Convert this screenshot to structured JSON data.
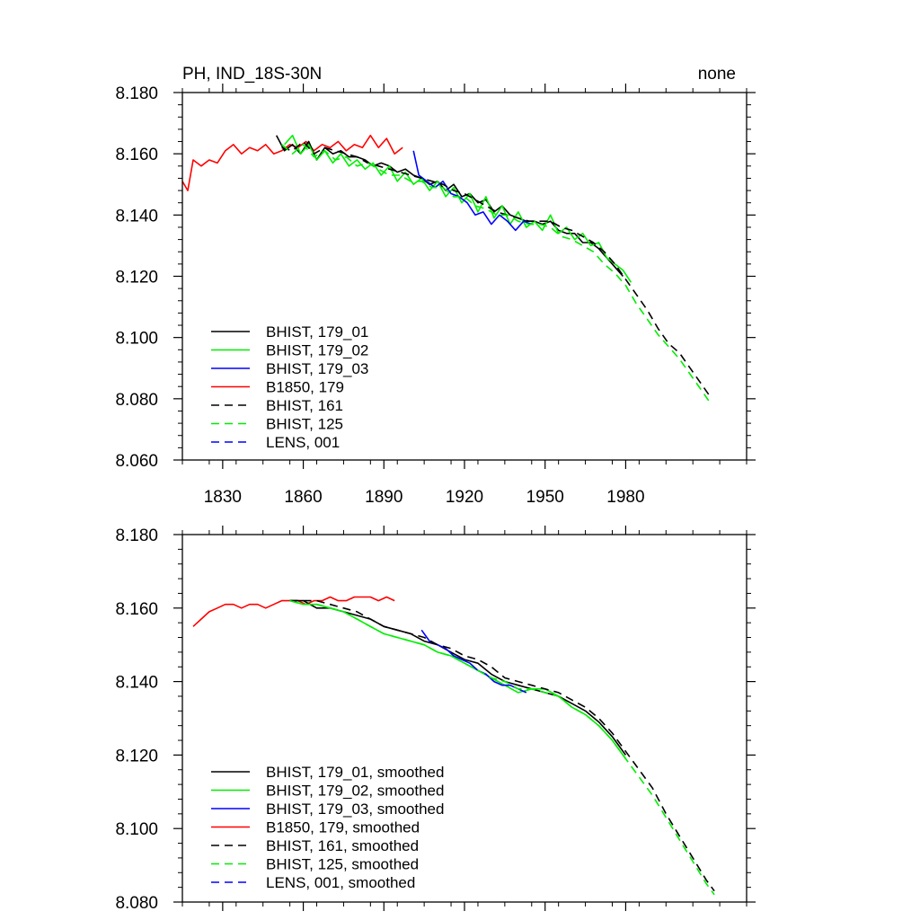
{
  "chart_data": [
    {
      "type": "line",
      "title_left": "PH, IND_18S-30N",
      "title_right": "none",
      "xlim": [
        1815,
        2025
      ],
      "ylim": [
        8.06,
        8.18
      ],
      "xticks": [
        1830,
        1860,
        1890,
        1920,
        1950,
        1980
      ],
      "xtick_labels": [
        "1830",
        "1860",
        "1890",
        "1920",
        "1950",
        "1980"
      ],
      "yticks": [
        8.06,
        8.08,
        8.1,
        8.12,
        8.14,
        8.16,
        8.18
      ],
      "ytick_labels": [
        "8.060",
        "8.080",
        "8.100",
        "8.120",
        "8.140",
        "8.160",
        "8.180"
      ],
      "legend_position": "bottom-left",
      "legend": [
        {
          "label": "BHIST, 179_01",
          "color": "#000000",
          "dash": "solid"
        },
        {
          "label": "BHIST, 179_02",
          "color": "#00ee00",
          "dash": "solid"
        },
        {
          "label": "BHIST, 179_03",
          "color": "#0000ff",
          "dash": "solid"
        },
        {
          "label": "B1850, 179",
          "color": "#ff0000",
          "dash": "solid"
        },
        {
          "label": "BHIST, 161",
          "color": "#000000",
          "dash": "dashed"
        },
        {
          "label": "BHIST, 125",
          "color": "#00ee00",
          "dash": "dashed"
        },
        {
          "label": "LENS, 001",
          "color": "#0000ff",
          "dash": "dashed"
        }
      ],
      "series": [
        {
          "name": "B1850, 179",
          "color": "#ff0000",
          "dash": "solid",
          "x": [
            1815,
            1817,
            1819,
            1822,
            1825,
            1828,
            1831,
            1834,
            1837,
            1840,
            1843,
            1846,
            1849,
            1852,
            1855,
            1858,
            1861,
            1864,
            1867,
            1870,
            1873,
            1876,
            1879,
            1882,
            1885,
            1888,
            1891,
            1894,
            1897
          ],
          "y": [
            8.151,
            8.148,
            8.158,
            8.156,
            8.158,
            8.157,
            8.161,
            8.163,
            8.16,
            8.162,
            8.161,
            8.163,
            8.16,
            8.161,
            8.163,
            8.162,
            8.164,
            8.161,
            8.163,
            8.162,
            8.164,
            8.161,
            8.163,
            8.162,
            8.166,
            8.162,
            8.165,
            8.16,
            8.162
          ]
        },
        {
          "name": "BHIST, 179_01",
          "color": "#000000",
          "dash": "solid",
          "x": [
            1850,
            1853,
            1856,
            1859,
            1862,
            1865,
            1868,
            1871,
            1874,
            1877,
            1880,
            1883,
            1886,
            1889,
            1892,
            1895,
            1898,
            1901,
            1904,
            1907,
            1910,
            1913,
            1916,
            1919,
            1922,
            1925,
            1928,
            1931,
            1934,
            1937,
            1940,
            1943,
            1946,
            1949,
            1952,
            1955,
            1958,
            1961,
            1964,
            1967,
            1970,
            1973,
            1976,
            1979
          ],
          "y": [
            8.166,
            8.161,
            8.163,
            8.16,
            8.164,
            8.158,
            8.162,
            8.16,
            8.161,
            8.159,
            8.159,
            8.158,
            8.156,
            8.157,
            8.156,
            8.154,
            8.155,
            8.153,
            8.152,
            8.15,
            8.151,
            8.148,
            8.15,
            8.146,
            8.147,
            8.144,
            8.145,
            8.141,
            8.143,
            8.14,
            8.139,
            8.138,
            8.138,
            8.137,
            8.138,
            8.135,
            8.134,
            8.134,
            8.131,
            8.131,
            8.129,
            8.126,
            8.123,
            8.12
          ]
        },
        {
          "name": "BHIST, 179_02",
          "color": "#00ee00",
          "dash": "solid",
          "x": [
            1853,
            1856,
            1859,
            1862,
            1865,
            1868,
            1871,
            1874,
            1877,
            1880,
            1883,
            1886,
            1889,
            1892,
            1895,
            1898,
            1901,
            1904,
            1907,
            1910,
            1913,
            1916,
            1919,
            1922,
            1925,
            1928,
            1931,
            1934,
            1937,
            1940,
            1943,
            1946,
            1949,
            1952,
            1955,
            1958,
            1961,
            1964,
            1967,
            1970,
            1973,
            1976,
            1979,
            1982
          ],
          "y": [
            8.163,
            8.166,
            8.16,
            8.163,
            8.158,
            8.161,
            8.157,
            8.16,
            8.156,
            8.158,
            8.155,
            8.157,
            8.153,
            8.156,
            8.151,
            8.154,
            8.15,
            8.152,
            8.148,
            8.151,
            8.146,
            8.149,
            8.144,
            8.147,
            8.141,
            8.146,
            8.139,
            8.143,
            8.137,
            8.141,
            8.136,
            8.138,
            8.135,
            8.14,
            8.134,
            8.136,
            8.132,
            8.134,
            8.13,
            8.131,
            8.126,
            8.124,
            8.122,
            8.118
          ]
        },
        {
          "name": "BHIST, 179_03",
          "color": "#0000ff",
          "dash": "solid",
          "x": [
            1901,
            1903,
            1906,
            1909,
            1912,
            1915,
            1918,
            1921,
            1924,
            1927,
            1930,
            1933,
            1936,
            1939,
            1942,
            1945
          ],
          "y": [
            8.161,
            8.153,
            8.151,
            8.149,
            8.151,
            8.147,
            8.146,
            8.144,
            8.14,
            8.141,
            8.137,
            8.14,
            8.138,
            8.135,
            8.138,
            8.137
          ]
        },
        {
          "name": "BHIST, 161",
          "color": "#000000",
          "dash": "dashed",
          "x": [
            1852,
            1856,
            1860,
            1864,
            1868,
            1872,
            1876,
            1880,
            1884,
            1888,
            1892,
            1896,
            1900,
            1904,
            1908,
            1912,
            1916,
            1920,
            1924,
            1928,
            1932,
            1936,
            1940,
            1944,
            1948,
            1952,
            1956,
            1960,
            1964,
            1968,
            1972,
            1976,
            1980,
            1984,
            1988,
            1992,
            1996,
            2000,
            2004,
            2008,
            2012
          ],
          "y": [
            8.162,
            8.161,
            8.164,
            8.16,
            8.162,
            8.161,
            8.16,
            8.159,
            8.157,
            8.156,
            8.155,
            8.154,
            8.153,
            8.152,
            8.151,
            8.15,
            8.148,
            8.147,
            8.145,
            8.143,
            8.141,
            8.14,
            8.139,
            8.138,
            8.138,
            8.138,
            8.136,
            8.135,
            8.133,
            8.131,
            8.128,
            8.124,
            8.119,
            8.114,
            8.109,
            8.103,
            8.098,
            8.095,
            8.09,
            8.085,
            8.08
          ]
        },
        {
          "name": "BHIST, 125",
          "color": "#00ee00",
          "dash": "dashed",
          "x": [
            1852,
            1856,
            1860,
            1864,
            1868,
            1872,
            1876,
            1880,
            1884,
            1888,
            1892,
            1896,
            1900,
            1904,
            1908,
            1912,
            1916,
            1920,
            1924,
            1928,
            1932,
            1936,
            1940,
            1944,
            1948,
            1952,
            1956,
            1960,
            1964,
            1968,
            1972,
            1976,
            1980,
            1984,
            1988,
            1992,
            1996,
            2000,
            2004,
            2008,
            2012
          ],
          "y": [
            8.163,
            8.16,
            8.163,
            8.159,
            8.161,
            8.158,
            8.159,
            8.156,
            8.157,
            8.155,
            8.153,
            8.153,
            8.151,
            8.151,
            8.149,
            8.149,
            8.146,
            8.146,
            8.143,
            8.142,
            8.14,
            8.14,
            8.138,
            8.137,
            8.137,
            8.136,
            8.133,
            8.132,
            8.13,
            8.128,
            8.124,
            8.121,
            8.117,
            8.111,
            8.106,
            8.101,
            8.097,
            8.093,
            8.088,
            8.083,
            8.078
          ]
        }
      ]
    },
    {
      "type": "line",
      "xlim": [
        1815,
        2025
      ],
      "ylim": [
        8.08,
        8.18
      ],
      "xticks": [
        1830,
        1860,
        1890,
        1920,
        1950,
        1980
      ],
      "yticks": [
        8.08,
        8.1,
        8.12,
        8.14,
        8.16,
        8.18
      ],
      "ytick_labels": [
        "8.080",
        "8.100",
        "8.120",
        "8.140",
        "8.160",
        "8.180"
      ],
      "legend_position": "bottom-left",
      "legend": [
        {
          "label": "BHIST, 179_01, smoothed",
          "color": "#000000",
          "dash": "solid"
        },
        {
          "label": "BHIST, 179_02, smoothed",
          "color": "#00ee00",
          "dash": "solid"
        },
        {
          "label": "BHIST, 179_03, smoothed",
          "color": "#0000ff",
          "dash": "solid"
        },
        {
          "label": "B1850, 179, smoothed",
          "color": "#ff0000",
          "dash": "solid"
        },
        {
          "label": "BHIST, 161, smoothed",
          "color": "#000000",
          "dash": "dashed"
        },
        {
          "label": "BHIST, 125, smoothed",
          "color": "#00ee00",
          "dash": "dashed"
        },
        {
          "label": "LENS, 001, smoothed",
          "color": "#0000ff",
          "dash": "dashed"
        }
      ],
      "series": [
        {
          "name": "B1850, 179, smoothed",
          "color": "#ff0000",
          "dash": "solid",
          "x": [
            1819,
            1822,
            1825,
            1828,
            1831,
            1834,
            1837,
            1840,
            1843,
            1846,
            1849,
            1852,
            1855,
            1858,
            1861,
            1864,
            1867,
            1870,
            1873,
            1876,
            1879,
            1882,
            1885,
            1888,
            1891,
            1894
          ],
          "y": [
            8.155,
            8.157,
            8.159,
            8.16,
            8.161,
            8.161,
            8.16,
            8.161,
            8.161,
            8.16,
            8.161,
            8.162,
            8.162,
            8.162,
            8.161,
            8.162,
            8.162,
            8.163,
            8.162,
            8.162,
            8.163,
            8.163,
            8.163,
            8.162,
            8.163,
            8.162
          ]
        },
        {
          "name": "BHIST, 179_01, smoothed",
          "color": "#000000",
          "dash": "solid",
          "x": [
            1855,
            1860,
            1865,
            1870,
            1875,
            1880,
            1885,
            1890,
            1895,
            1900,
            1905,
            1910,
            1915,
            1920,
            1925,
            1930,
            1935,
            1940,
            1945,
            1950,
            1955,
            1960,
            1965,
            1970,
            1975,
            1980
          ],
          "y": [
            8.162,
            8.162,
            8.16,
            8.16,
            8.159,
            8.158,
            8.157,
            8.155,
            8.154,
            8.153,
            8.151,
            8.15,
            8.148,
            8.146,
            8.145,
            8.142,
            8.14,
            8.139,
            8.138,
            8.137,
            8.136,
            8.134,
            8.132,
            8.129,
            8.125,
            8.12
          ]
        },
        {
          "name": "BHIST, 179_02, smoothed",
          "color": "#00ee00",
          "dash": "solid",
          "x": [
            1855,
            1860,
            1865,
            1870,
            1875,
            1880,
            1885,
            1890,
            1895,
            1900,
            1905,
            1910,
            1915,
            1920,
            1925,
            1930,
            1935,
            1940,
            1945,
            1950,
            1955,
            1960,
            1965,
            1970,
            1975,
            1980
          ],
          "y": [
            8.162,
            8.161,
            8.161,
            8.16,
            8.159,
            8.157,
            8.155,
            8.153,
            8.152,
            8.151,
            8.15,
            8.148,
            8.147,
            8.145,
            8.143,
            8.141,
            8.139,
            8.137,
            8.138,
            8.138,
            8.136,
            8.133,
            8.131,
            8.128,
            8.124,
            8.119
          ]
        },
        {
          "name": "BHIST, 179_03, smoothed",
          "color": "#0000ff",
          "dash": "solid",
          "x": [
            1904,
            1907,
            1910,
            1913,
            1916,
            1919,
            1922,
            1925,
            1928,
            1931,
            1934,
            1937,
            1940,
            1943
          ],
          "y": [
            8.154,
            8.151,
            8.15,
            8.149,
            8.147,
            8.146,
            8.145,
            8.143,
            8.142,
            8.14,
            8.139,
            8.139,
            8.138,
            8.137
          ]
        },
        {
          "name": "BHIST, 161, smoothed",
          "color": "#000000",
          "dash": "dashed",
          "x": [
            1855,
            1860,
            1865,
            1870,
            1875,
            1880,
            1885,
            1890,
            1895,
            1900,
            1905,
            1910,
            1915,
            1920,
            1925,
            1930,
            1935,
            1940,
            1945,
            1950,
            1955,
            1960,
            1965,
            1970,
            1975,
            1980,
            1985,
            1990,
            1995,
            2000,
            2005,
            2010,
            2013
          ],
          "y": [
            8.162,
            8.162,
            8.162,
            8.161,
            8.16,
            8.159,
            8.157,
            8.155,
            8.154,
            8.153,
            8.152,
            8.15,
            8.149,
            8.147,
            8.146,
            8.144,
            8.141,
            8.14,
            8.139,
            8.138,
            8.137,
            8.135,
            8.133,
            8.13,
            8.126,
            8.121,
            8.116,
            8.111,
            8.104,
            8.098,
            8.092,
            8.086,
            8.083
          ]
        },
        {
          "name": "BHIST, 125, smoothed",
          "color": "#00ee00",
          "dash": "dashed",
          "x": [
            1855,
            1860,
            1865,
            1870,
            1875,
            1880,
            1885,
            1890,
            1895,
            1900,
            1905,
            1910,
            1915,
            1920,
            1925,
            1930,
            1935,
            1940,
            1945,
            1950,
            1955,
            1960,
            1965,
            1970,
            1975,
            1980,
            1985,
            1990,
            1995,
            2000,
            2005,
            2010,
            2013
          ],
          "y": [
            8.162,
            8.161,
            8.161,
            8.16,
            8.159,
            8.157,
            8.155,
            8.153,
            8.152,
            8.151,
            8.15,
            8.148,
            8.147,
            8.145,
            8.143,
            8.141,
            8.14,
            8.138,
            8.138,
            8.137,
            8.136,
            8.133,
            8.131,
            8.128,
            8.124,
            8.119,
            8.114,
            8.109,
            8.103,
            8.097,
            8.091,
            8.085,
            8.082
          ]
        }
      ]
    }
  ]
}
